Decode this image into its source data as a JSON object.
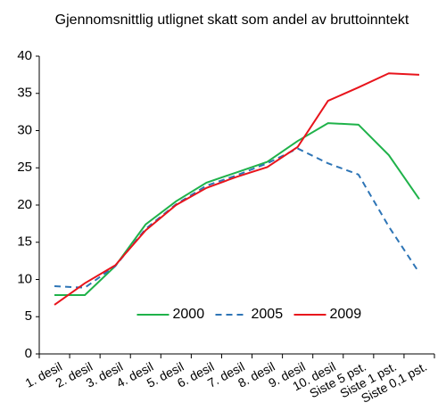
{
  "chart_data": {
    "type": "line",
    "title": "Gjennomsnittlig utlignet skatt som andel av bruttoinntekt",
    "categories": [
      "1. desil",
      "2. desil",
      "3. desil",
      "4. desil",
      "5. desil",
      "6. desil",
      "7. desil",
      "8. desil",
      "9. desil",
      "10. desil",
      "Siste 5 pst.",
      "Siste 1 pst.",
      "Siste 0,1 pst."
    ],
    "series": [
      {
        "name": "2000",
        "color": "#1fb24a",
        "dash": "solid",
        "values": [
          7.9,
          7.9,
          11.8,
          17.4,
          20.5,
          23.0,
          24.4,
          25.8,
          28.6,
          31.0,
          30.8,
          26.7,
          20.8
        ]
      },
      {
        "name": "2005",
        "color": "#2e75b6",
        "dash": "dashed",
        "values": [
          9.1,
          8.9,
          11.8,
          16.8,
          20.1,
          22.6,
          24.0,
          25.6,
          27.6,
          25.6,
          24.1,
          17.1,
          10.9
        ]
      },
      {
        "name": "2009",
        "color": "#e8141c",
        "dash": "solid",
        "values": [
          6.6,
          9.5,
          11.9,
          16.6,
          20.0,
          22.3,
          23.8,
          25.1,
          27.8,
          34.0,
          35.8,
          37.7,
          37.5
        ]
      }
    ],
    "ylim": [
      0,
      40
    ],
    "yticks": [
      0,
      5,
      10,
      15,
      20,
      25,
      30,
      35,
      40
    ],
    "grid": false,
    "legend": "bottom"
  }
}
